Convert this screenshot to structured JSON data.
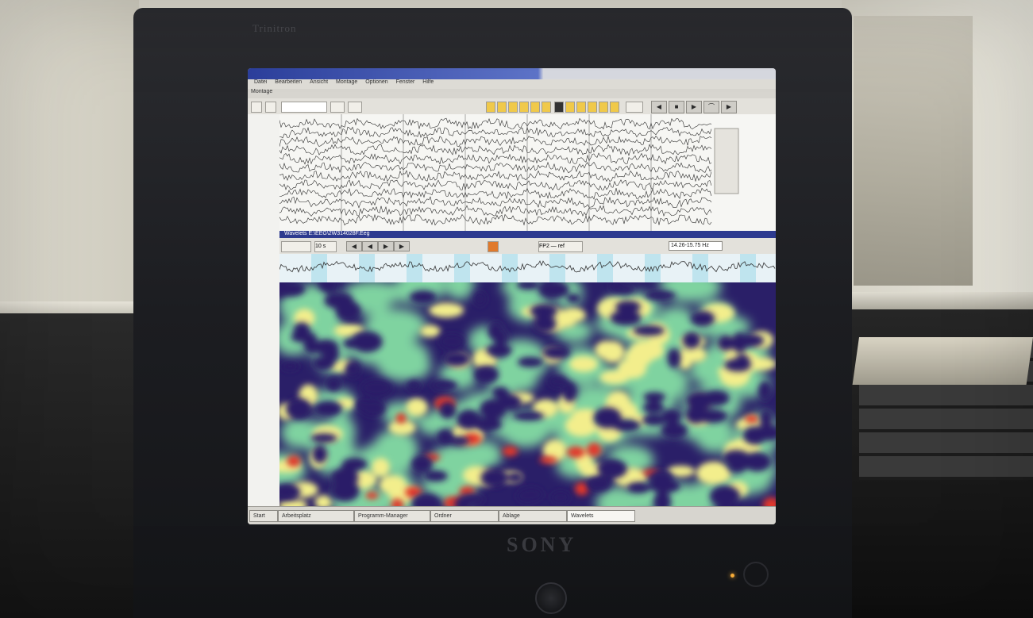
{
  "monitor": {
    "brand_top": "Trinitron",
    "brand_logo": "SONY"
  },
  "app": {
    "title": "",
    "menu": [
      "Datei",
      "Bearbeiten",
      "Ansicht",
      "Montage",
      "Optionen",
      "Fenster",
      "Hilfe"
    ],
    "tab": "Montage",
    "wave_window_title": "Wavelets  E:\\EEG\\2W314028F.Eeg",
    "time_window": "10 s",
    "channel": "FP2 — ref",
    "time_field": "14.26-15.75 Hz",
    "taskbar": [
      "Start",
      "Arbeitsplatz",
      "Programm-Manager",
      "Ordner",
      "Ablage",
      "Wavelets"
    ]
  },
  "colors": {
    "titlebar": "#2c3f9c",
    "spectro_low": "#2b1e6a",
    "spectro_mid": "#f4ef8a",
    "spectro_high": "#e0352b"
  }
}
